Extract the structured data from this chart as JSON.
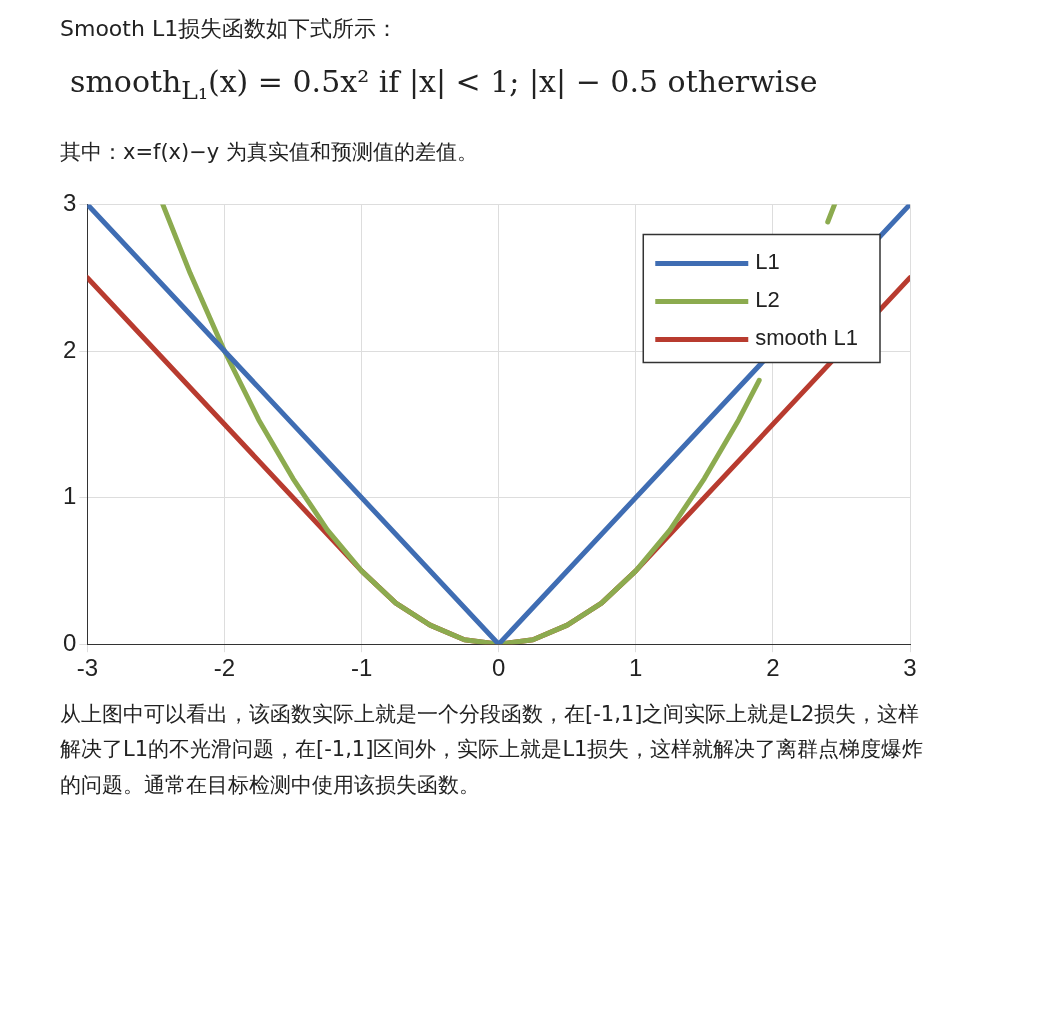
{
  "chart_data": {
    "type": "line",
    "title": "Smooth L1损失函数如下式所示：",
    "annotations": [
      "smooth$_{L₁}$(x) = 0.5x² if |x| < 1; |x| − 0.5 otherwise",
      "其中：x=f(x)−y 为真实值和预测值的差值。",
      "从上图中可以看出，该函数实际上就是一个分段函数，在[-1,1]之间实际上就是L2损失，这样解决了L1的不光滑问题，在[-1,1]区间外，实际上就是L1损失，这样就解决了离群点梯度爆炸的问题。通常在目标检测中使用该损失函数。"
    ],
    "series": [
      {
        "name": "L1",
        "color": "#3f6db3",
        "x": [
          -3,
          0,
          3
        ],
        "values": [
          3,
          0,
          3
        ]
      },
      {
        "name": "L2",
        "color": "#8cab4f",
        "x": [
          -2.45,
          -2.25,
          -2,
          -1.75,
          -1.5,
          -1.25,
          -1,
          -0.75,
          -0.5,
          -0.25,
          0,
          0.25,
          0.5,
          0.75,
          1,
          1.25,
          1.5,
          1.75,
          1.9,
          2,
          2.25,
          2.4,
          2.45
        ],
        "values": [
          3,
          2.53,
          2,
          1.53,
          1.13,
          0.78,
          0.5,
          0.28,
          0.13,
          0.03,
          0,
          0.03,
          0.13,
          0.28,
          0.5,
          0.78,
          1.13,
          1.53,
          1.8,
          null,
          null,
          2.88,
          3
        ]
      },
      {
        "name": "smooth L1",
        "color": "#b83b2f",
        "x": [
          -3,
          -1,
          -0.75,
          -0.5,
          -0.25,
          0,
          0.25,
          0.5,
          0.75,
          1,
          3
        ],
        "values": [
          2.5,
          0.5,
          0.28,
          0.13,
          0.03,
          0,
          0.03,
          0.13,
          0.28,
          0.5,
          2.5
        ]
      }
    ],
    "xlim": [
      -3,
      3
    ],
    "xticks": [
      -3,
      -2,
      -1,
      0,
      1,
      2,
      3
    ],
    "ylim": [
      0,
      3
    ],
    "yticks": [
      0,
      1,
      2,
      3
    ],
    "grid": true,
    "legend": "top right",
    "marker": "none",
    "line_style": "solid"
  }
}
